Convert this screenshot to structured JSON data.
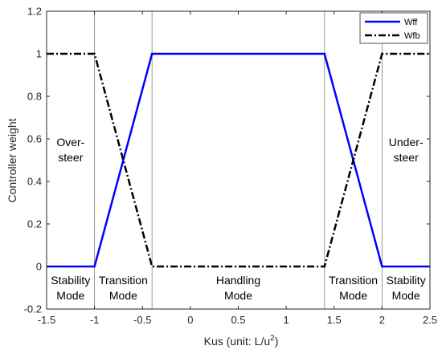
{
  "chart_data": {
    "type": "line",
    "title": "",
    "xlabel": "Kus (unit: L/u",
    "xlabel_sup": "2",
    "xlabel_end": ")",
    "ylabel": "Controller weight",
    "xlim": [
      -1.5,
      2.5
    ],
    "ylim": [
      -0.2,
      1.2
    ],
    "xticks": [
      "-1.5",
      "-1",
      "-0.5",
      "0",
      "0.5",
      "1",
      "1.5",
      "2",
      "2.5"
    ],
    "yticks": [
      "-0.2",
      "0",
      "0.2",
      "0.4",
      "0.6",
      "0.8",
      "1",
      "1.2"
    ],
    "grid": false,
    "legend_position": "top-right",
    "boundaries": [
      -1,
      -0.4,
      1.4,
      2
    ],
    "series": [
      {
        "name": "Wff",
        "color": "#0000ff",
        "style": "solid",
        "x": [
          -1.5,
          -1,
          -0.4,
          1.4,
          2,
          2.5
        ],
        "y": [
          0,
          0,
          1,
          1,
          0,
          0
        ]
      },
      {
        "name": "Wfb",
        "color": "#000000",
        "style": "dashdot",
        "x": [
          -1.5,
          -1,
          -0.4,
          1.4,
          2,
          2.5
        ],
        "y": [
          1,
          1,
          0,
          0,
          1,
          1
        ]
      }
    ],
    "annotations": [
      {
        "lines": [
          "Over-",
          "steer"
        ],
        "x": -1.25,
        "y": 0.55
      },
      {
        "lines": [
          "Under-",
          "steer"
        ],
        "x": 2.25,
        "y": 0.55
      },
      {
        "lines": [
          "Stability",
          "Mode"
        ],
        "x": -1.25,
        "y": -0.1
      },
      {
        "lines": [
          "Transition",
          "Mode"
        ],
        "x": -0.7,
        "y": -0.1
      },
      {
        "lines": [
          "Handling",
          "Mode"
        ],
        "x": 0.5,
        "y": -0.1
      },
      {
        "lines": [
          "Transition",
          "Mode"
        ],
        "x": 1.7,
        "y": -0.1
      },
      {
        "lines": [
          "Stability",
          "Mode"
        ],
        "x": 2.25,
        "y": -0.1
      }
    ]
  }
}
